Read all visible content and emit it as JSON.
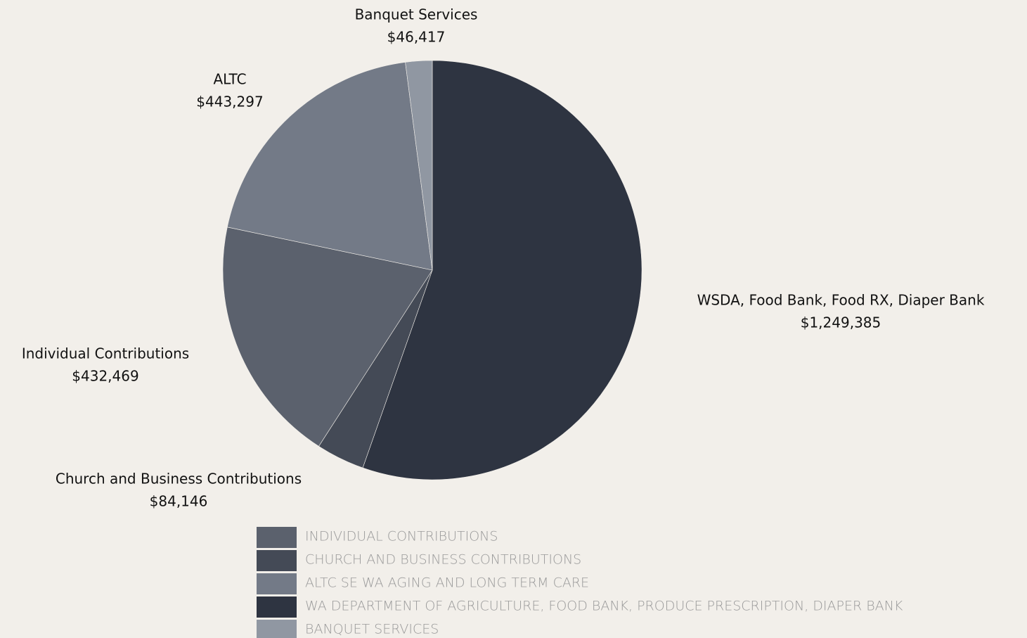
{
  "chart_data": {
    "type": "pie",
    "categories": [
      "WA DEPARTMENT OF AGRICULTURE, FOOD BANK, PRODUCE PRESCRIPTION, DIAPER BANK",
      "CHURCH AND BUSINESS CONTRIBUTIONS",
      "INDIVIDUAL CONTRIBUTIONS",
      "ALTC SE WA AGING AND LONG TERM CARE",
      "BANQUET SERVICES"
    ],
    "slice_labels": [
      "WSDA, Food Bank, Food RX, Diaper Bank",
      "Church and Business Contributions",
      "Individual Contributions",
      "ALTC",
      "Banquet Services"
    ],
    "values": [
      1249385,
      84146,
      432469,
      443297,
      46417
    ],
    "value_labels": [
      "$1,249,385",
      "$84,146",
      "$432,469",
      "$443,297",
      "$46,417"
    ],
    "colors": [
      "#2e3441",
      "#444a56",
      "#5b616d",
      "#737a87",
      "#9097a2"
    ],
    "legend": "bottom"
  }
}
